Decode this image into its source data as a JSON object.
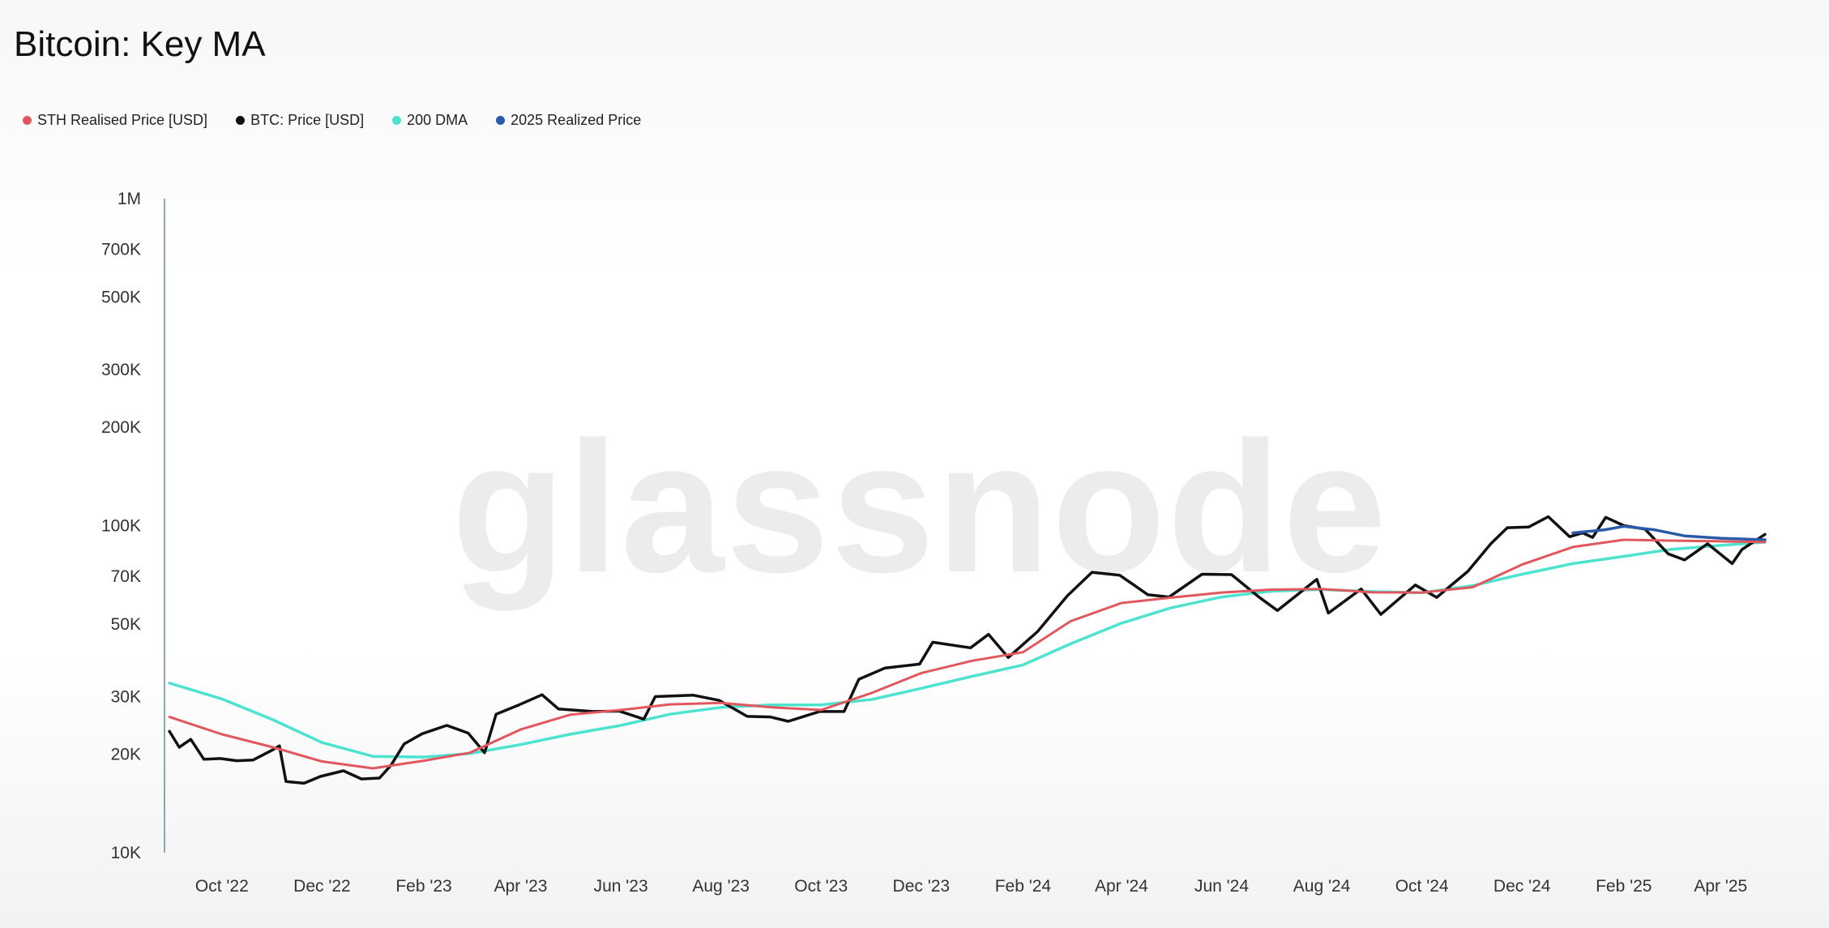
{
  "title": "Bitcoin: Key MA",
  "watermark": "glassnode",
  "legend": [
    {
      "label": "STH Realised Price [USD]",
      "color": "#e0585e"
    },
    {
      "label": "BTC: Price [USD]",
      "color": "#111111"
    },
    {
      "label": "200 DMA",
      "color": "#4de3cf"
    },
    {
      "label": "2025 Realized Price",
      "color": "#2b5aa8"
    }
  ],
  "chart_data": {
    "type": "line",
    "yscale": "log",
    "ylim": [
      10000,
      1000000
    ],
    "xlim": [
      "2022-08-28",
      "2025-04-28"
    ],
    "y_ticks": [
      {
        "value": 1000000,
        "label": "1M"
      },
      {
        "value": 700000,
        "label": "700K"
      },
      {
        "value": 500000,
        "label": "500K"
      },
      {
        "value": 300000,
        "label": "300K"
      },
      {
        "value": 200000,
        "label": "200K"
      },
      {
        "value": 100000,
        "label": "100K"
      },
      {
        "value": 70000,
        "label": "70K"
      },
      {
        "value": 50000,
        "label": "50K"
      },
      {
        "value": 30000,
        "label": "30K"
      },
      {
        "value": 20000,
        "label": "20K"
      },
      {
        "value": 10000,
        "label": "10K"
      }
    ],
    "x_ticks": [
      {
        "date": "2022-10-01",
        "label": "Oct '22"
      },
      {
        "date": "2022-12-01",
        "label": "Dec '22"
      },
      {
        "date": "2023-02-01",
        "label": "Feb '23"
      },
      {
        "date": "2023-04-01",
        "label": "Apr '23"
      },
      {
        "date": "2023-06-01",
        "label": "Jun '23"
      },
      {
        "date": "2023-08-01",
        "label": "Aug '23"
      },
      {
        "date": "2023-10-01",
        "label": "Oct '23"
      },
      {
        "date": "2023-12-01",
        "label": "Dec '23"
      },
      {
        "date": "2024-02-01",
        "label": "Feb '24"
      },
      {
        "date": "2024-04-01",
        "label": "Apr '24"
      },
      {
        "date": "2024-06-01",
        "label": "Jun '24"
      },
      {
        "date": "2024-08-01",
        "label": "Aug '24"
      },
      {
        "date": "2024-10-01",
        "label": "Oct '24"
      },
      {
        "date": "2024-12-01",
        "label": "Dec '24"
      },
      {
        "date": "2025-02-01",
        "label": "Feb '25"
      },
      {
        "date": "2025-04-01",
        "label": "Apr '25"
      }
    ],
    "series": [
      {
        "name": "BTC: Price [USD]",
        "color": "#111111",
        "points": [
          [
            "2022-08-30",
            23500
          ],
          [
            "2022-09-05",
            21000
          ],
          [
            "2022-09-12",
            22200
          ],
          [
            "2022-09-20",
            19300
          ],
          [
            "2022-09-30",
            19400
          ],
          [
            "2022-10-10",
            19100
          ],
          [
            "2022-10-20",
            19200
          ],
          [
            "2022-10-31",
            20500
          ],
          [
            "2022-11-05",
            21200
          ],
          [
            "2022-11-09",
            16500
          ],
          [
            "2022-11-20",
            16300
          ],
          [
            "2022-11-30",
            17100
          ],
          [
            "2022-12-14",
            17800
          ],
          [
            "2022-12-25",
            16800
          ],
          [
            "2023-01-05",
            16900
          ],
          [
            "2023-01-12",
            18500
          ],
          [
            "2023-01-20",
            21500
          ],
          [
            "2023-01-31",
            23100
          ],
          [
            "2023-02-15",
            24500
          ],
          [
            "2023-02-28",
            23200
          ],
          [
            "2023-03-10",
            20200
          ],
          [
            "2023-03-17",
            26500
          ],
          [
            "2023-03-31",
            28300
          ],
          [
            "2023-04-14",
            30400
          ],
          [
            "2023-04-24",
            27500
          ],
          [
            "2023-05-15",
            27000
          ],
          [
            "2023-05-31",
            27100
          ],
          [
            "2023-06-15",
            25600
          ],
          [
            "2023-06-22",
            30000
          ],
          [
            "2023-07-15",
            30300
          ],
          [
            "2023-07-31",
            29200
          ],
          [
            "2023-08-17",
            26100
          ],
          [
            "2023-08-31",
            26000
          ],
          [
            "2023-09-11",
            25200
          ],
          [
            "2023-09-30",
            27000
          ],
          [
            "2023-10-15",
            27000
          ],
          [
            "2023-10-24",
            33900
          ],
          [
            "2023-11-09",
            36700
          ],
          [
            "2023-11-30",
            37700
          ],
          [
            "2023-12-08",
            44000
          ],
          [
            "2023-12-31",
            42300
          ],
          [
            "2024-01-11",
            46500
          ],
          [
            "2024-01-23",
            39500
          ],
          [
            "2024-02-10",
            47500
          ],
          [
            "2024-02-28",
            61000
          ],
          [
            "2024-03-14",
            72000
          ],
          [
            "2024-03-31",
            70500
          ],
          [
            "2024-04-17",
            61500
          ],
          [
            "2024-04-30",
            60500
          ],
          [
            "2024-05-20",
            71000
          ],
          [
            "2024-06-07",
            70800
          ],
          [
            "2024-06-24",
            60300
          ],
          [
            "2024-07-05",
            55000
          ],
          [
            "2024-07-29",
            68500
          ],
          [
            "2024-08-05",
            54000
          ],
          [
            "2024-08-25",
            64000
          ],
          [
            "2024-09-06",
            53500
          ],
          [
            "2024-09-27",
            65800
          ],
          [
            "2024-10-10",
            60300
          ],
          [
            "2024-10-29",
            72500
          ],
          [
            "2024-11-12",
            88000
          ],
          [
            "2024-11-22",
            98500
          ],
          [
            "2024-12-05",
            99000
          ],
          [
            "2024-12-17",
            106500
          ],
          [
            "2024-12-30",
            92500
          ],
          [
            "2025-01-07",
            95000
          ],
          [
            "2025-01-13",
            92000
          ],
          [
            "2025-01-21",
            106000
          ],
          [
            "2025-02-01",
            100000
          ],
          [
            "2025-02-14",
            97500
          ],
          [
            "2025-02-28",
            82000
          ],
          [
            "2025-03-10",
            78500
          ],
          [
            "2025-03-24",
            88000
          ],
          [
            "2025-04-08",
            76500
          ],
          [
            "2025-04-14",
            84500
          ],
          [
            "2025-04-28",
            94000
          ]
        ]
      },
      {
        "name": "STH Realised Price [USD]",
        "color": "#e0585e",
        "points": [
          [
            "2022-08-30",
            26000
          ],
          [
            "2022-10-01",
            23000
          ],
          [
            "2022-11-01",
            21000
          ],
          [
            "2022-12-01",
            19000
          ],
          [
            "2023-01-01",
            18100
          ],
          [
            "2023-02-01",
            19100
          ],
          [
            "2023-03-01",
            20200
          ],
          [
            "2023-04-01",
            23800
          ],
          [
            "2023-05-01",
            26400
          ],
          [
            "2023-06-01",
            27300
          ],
          [
            "2023-07-01",
            28400
          ],
          [
            "2023-08-01",
            28700
          ],
          [
            "2023-09-01",
            27800
          ],
          [
            "2023-10-01",
            27300
          ],
          [
            "2023-11-01",
            30800
          ],
          [
            "2023-12-01",
            35400
          ],
          [
            "2024-01-01",
            38600
          ],
          [
            "2024-02-01",
            41000
          ],
          [
            "2024-03-01",
            51000
          ],
          [
            "2024-04-01",
            58000
          ],
          [
            "2024-05-01",
            60200
          ],
          [
            "2024-06-01",
            62400
          ],
          [
            "2024-07-01",
            63700
          ],
          [
            "2024-08-01",
            64000
          ],
          [
            "2024-09-01",
            62500
          ],
          [
            "2024-10-01",
            62400
          ],
          [
            "2024-11-01",
            64800
          ],
          [
            "2024-12-01",
            76000
          ],
          [
            "2025-01-01",
            86000
          ],
          [
            "2025-02-01",
            90500
          ],
          [
            "2025-03-01",
            90000
          ],
          [
            "2025-04-01",
            89500
          ],
          [
            "2025-04-28",
            89000
          ]
        ]
      },
      {
        "name": "200 DMA",
        "color": "#4de3cf",
        "points": [
          [
            "2022-08-30",
            33000
          ],
          [
            "2022-10-01",
            29500
          ],
          [
            "2022-11-01",
            25500
          ],
          [
            "2022-12-01",
            21700
          ],
          [
            "2023-01-01",
            19700
          ],
          [
            "2023-02-01",
            19600
          ],
          [
            "2023-03-01",
            20100
          ],
          [
            "2023-04-01",
            21400
          ],
          [
            "2023-05-01",
            23000
          ],
          [
            "2023-06-01",
            24500
          ],
          [
            "2023-07-01",
            26500
          ],
          [
            "2023-08-01",
            27800
          ],
          [
            "2023-09-01",
            28300
          ],
          [
            "2023-10-01",
            28300
          ],
          [
            "2023-11-01",
            29400
          ],
          [
            "2023-12-01",
            31800
          ],
          [
            "2024-01-01",
            34600
          ],
          [
            "2024-02-01",
            37500
          ],
          [
            "2024-03-01",
            43500
          ],
          [
            "2024-04-01",
            50300
          ],
          [
            "2024-05-01",
            56000
          ],
          [
            "2024-06-01",
            60500
          ],
          [
            "2024-07-01",
            63000
          ],
          [
            "2024-08-01",
            63800
          ],
          [
            "2024-09-01",
            62800
          ],
          [
            "2024-10-01",
            62300
          ],
          [
            "2024-11-01",
            65500
          ],
          [
            "2024-12-01",
            71000
          ],
          [
            "2025-01-01",
            76500
          ],
          [
            "2025-02-01",
            80500
          ],
          [
            "2025-03-01",
            84500
          ],
          [
            "2025-04-01",
            87000
          ],
          [
            "2025-04-28",
            89000
          ]
        ]
      },
      {
        "name": "2025 Realized Price",
        "color": "#2b5aa8",
        "points": [
          [
            "2025-01-01",
            95000
          ],
          [
            "2025-01-20",
            97000
          ],
          [
            "2025-02-01",
            99500
          ],
          [
            "2025-02-20",
            97000
          ],
          [
            "2025-03-10",
            93000
          ],
          [
            "2025-04-01",
            91500
          ],
          [
            "2025-04-28",
            90500
          ]
        ]
      }
    ]
  }
}
